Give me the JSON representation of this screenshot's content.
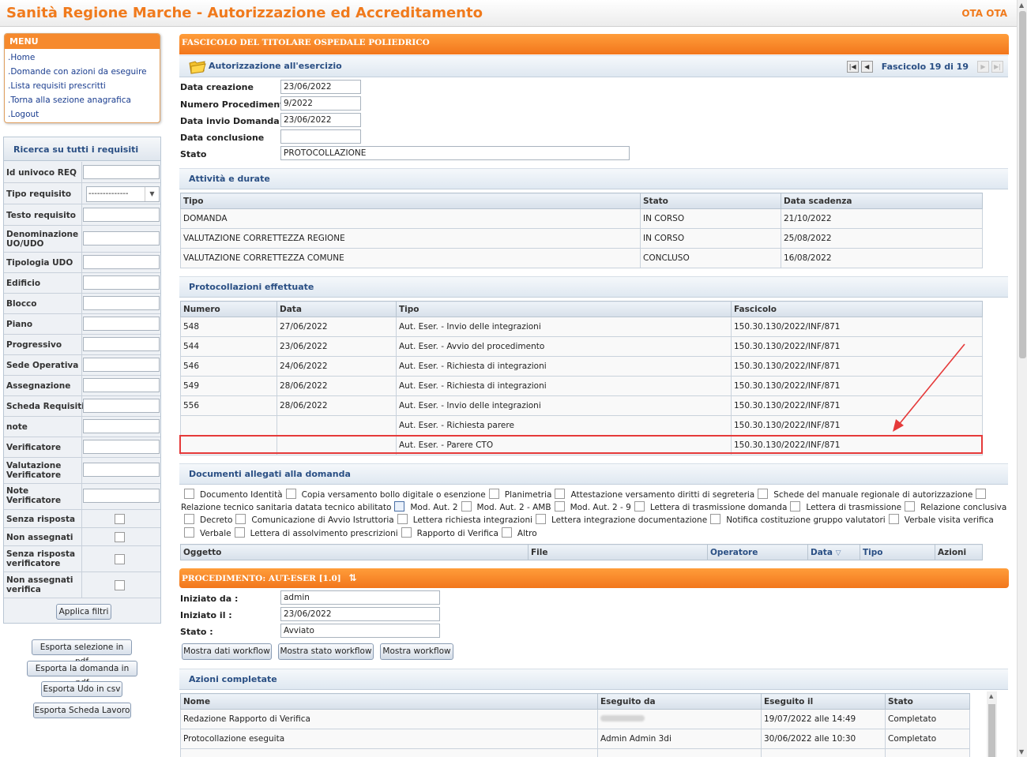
{
  "header": {
    "title": "Sanità Regione Marche - Autorizzazione ed Accreditamento",
    "user": "OTA OTA"
  },
  "menu": {
    "title": "MENU",
    "items": [
      ".Home",
      ".Domande con azioni da eseguire",
      ".Lista requisiti prescritti",
      ".Torna alla sezione anagrafica",
      ".Logout"
    ]
  },
  "search": {
    "title": "Ricerca su tutti i requisiti",
    "fields": [
      "Id univoco REQ",
      "Tipo requisito",
      "Testo requisito",
      "Denominazione UO/UDO",
      "Tipologia UDO",
      "Edificio",
      "Blocco",
      "Piano",
      "Progressivo",
      "Sede Operativa",
      "Assegnazione",
      "Scheda Requisiti",
      "note",
      "Verificatore",
      "Valutazione Verificatore",
      "Note Verificatore"
    ],
    "select_value": "--------------",
    "checkbox_fields": [
      "Senza risposta",
      "Non assegnati",
      "Senza risposta verificatore",
      "Non assegnati verifica"
    ],
    "apply_button": "Applica filtri"
  },
  "exports": [
    "Esporta selezione in pdf",
    "Esporta la domanda in pdf",
    "Esporta Udo in csv",
    "Esporta Scheda Lavoro"
  ],
  "fascicolo": {
    "title": "FASCICOLO DEL TITOLARE OSPEDALE POLIEDRICO",
    "subtitle": "Autorizzazione all'esercizio",
    "pager": "Fascicolo 19 di 19",
    "fields": {
      "data_creazione": {
        "label": "Data creazione",
        "value": "23/06/2022"
      },
      "numero_procedimento": {
        "label": "Numero Procedimento",
        "value": "9/2022"
      },
      "data_invio": {
        "label": "Data invio Domanda",
        "value": "23/06/2022"
      },
      "data_conclusione": {
        "label": "Data conclusione",
        "value": ""
      },
      "stato": {
        "label": "Stato",
        "value": "PROTOCOLLAZIONE"
      }
    }
  },
  "attivita": {
    "title": "Attività e durate",
    "headers": [
      "Tipo",
      "Stato",
      "Data scadenza"
    ],
    "rows": [
      [
        "DOMANDA",
        "IN CORSO",
        "21/10/2022"
      ],
      [
        "VALUTAZIONE CORRETTEZZA REGIONE",
        "IN CORSO",
        "25/08/2022"
      ],
      [
        "VALUTAZIONE CORRETTEZZA COMUNE",
        "CONCLUSO",
        "16/08/2022"
      ]
    ]
  },
  "protocollazioni": {
    "title": "Protocollazioni effettuate",
    "headers": [
      "Numero",
      "Data",
      "Tipo",
      "Fascicolo"
    ],
    "rows": [
      [
        "548",
        "27/06/2022",
        "Aut. Eser. - Invio delle integrazioni",
        "150.30.130/2022/INF/871"
      ],
      [
        "544",
        "23/06/2022",
        "Aut. Eser. - Avvio del procedimento",
        "150.30.130/2022/INF/871"
      ],
      [
        "546",
        "24/06/2022",
        "Aut. Eser. - Richiesta di integrazioni",
        "150.30.130/2022/INF/871"
      ],
      [
        "549",
        "28/06/2022",
        "Aut. Eser. - Richiesta di integrazioni",
        "150.30.130/2022/INF/871"
      ],
      [
        "556",
        "28/06/2022",
        "Aut. Eser. - Invio delle integrazioni",
        "150.30.130/2022/INF/871"
      ],
      [
        "",
        "",
        "Aut. Eser. - Richiesta parere",
        "150.30.130/2022/INF/871"
      ],
      [
        "",
        "",
        "Aut. Eser. - Parere CTO",
        "150.30.130/2022/INF/871"
      ]
    ]
  },
  "documenti": {
    "title": "Documenti allegati alla domanda",
    "types": [
      "Documento Identità",
      "Copia versamento bollo digitale o esenzione",
      "Planimetria",
      "Attestazione versamento diritti di segreteria",
      "Schede del manuale regionale di autorizzazione",
      "Relazione tecnico sanitaria datata tecnico abilitato",
      "Mod. Aut. 2",
      "Mod. Aut. 2 - AMB",
      "Mod. Aut. 2 - 9",
      "Lettera di trasmissione domanda",
      "Lettera di trasmissione",
      "Relazione conclusiva",
      "Decreto",
      "Comunicazione di Avvio Istruttoria",
      "Lettera richiesta integrazioni",
      "Lettera integrazione documentazione",
      "Notifica costituzione gruppo valutatori",
      "Verbale visita verifica",
      "Verbale",
      "Lettera di assolvimento prescrizioni",
      "Rapporto di Verifica",
      "Altro"
    ],
    "headers": [
      "Oggetto",
      "File",
      "Operatore",
      "Data",
      "Tipo",
      "Azioni"
    ]
  },
  "procedimento": {
    "title": "PROCEDIMENTO: AUT-ESER [1.0]",
    "iniziato_da": {
      "label": "Iniziato da :",
      "value": "admin"
    },
    "iniziato_il": {
      "label": "Iniziato il :",
      "value": "23/06/2022"
    },
    "stato": {
      "label": "Stato :",
      "value": "Avviato"
    },
    "buttons": [
      "Mostra dati workflow",
      "Mostra stato workflow",
      "Mostra workflow"
    ]
  },
  "azioni": {
    "title": "Azioni completate",
    "headers": [
      "Nome",
      "Eseguito da",
      "Eseguito il",
      "Stato"
    ],
    "rows": [
      [
        "Redazione Rapporto di Verifica",
        "",
        "19/07/2022 alle 14:49",
        "Completato"
      ],
      [
        "Protocollazione eseguita",
        "Admin Admin 3di",
        "30/06/2022 alle 10:30",
        "Completato"
      ]
    ]
  },
  "colors": {
    "accent": "#f68a2e",
    "section_text": "#2a4f84",
    "highlight": "#e53a3a"
  }
}
